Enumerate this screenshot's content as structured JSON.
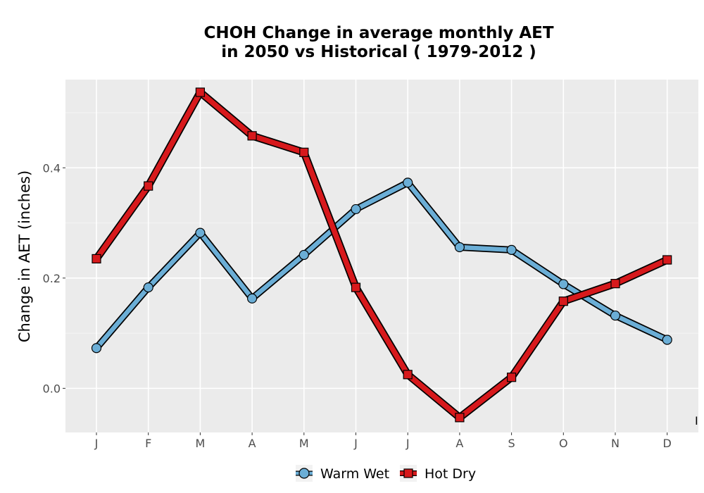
{
  "chart_data": {
    "type": "line",
    "title_lines": [
      "CHOH  Change in average monthly AET",
      "in 2050 vs Historical ( 1979-2012 )"
    ],
    "xlabel": "",
    "ylabel": "Change in AET (inches)",
    "categories": [
      "J",
      "F",
      "M",
      "A",
      "M",
      "J",
      "J",
      "A",
      "S",
      "O",
      "N",
      "D"
    ],
    "ylim": [
      -0.08,
      0.56
    ],
    "yticks": [
      0.0,
      0.2,
      0.4
    ],
    "ytick_labels": [
      "0.0",
      "0.2",
      "0.4"
    ],
    "grid": true,
    "legend_position": "bottom",
    "stray_mark": "I",
    "series": [
      {
        "name": "Warm Wet",
        "marker": "circle",
        "color": "#6baed6",
        "values": [
          0.073,
          0.183,
          0.282,
          0.163,
          0.242,
          0.325,
          0.373,
          0.256,
          0.251,
          0.189,
          0.132,
          0.088
        ]
      },
      {
        "name": "Hot Dry",
        "marker": "square",
        "color": "#d7191c",
        "values": [
          0.235,
          0.367,
          0.537,
          0.458,
          0.428,
          0.183,
          0.025,
          -0.053,
          0.02,
          0.158,
          0.19,
          0.233
        ]
      }
    ]
  }
}
